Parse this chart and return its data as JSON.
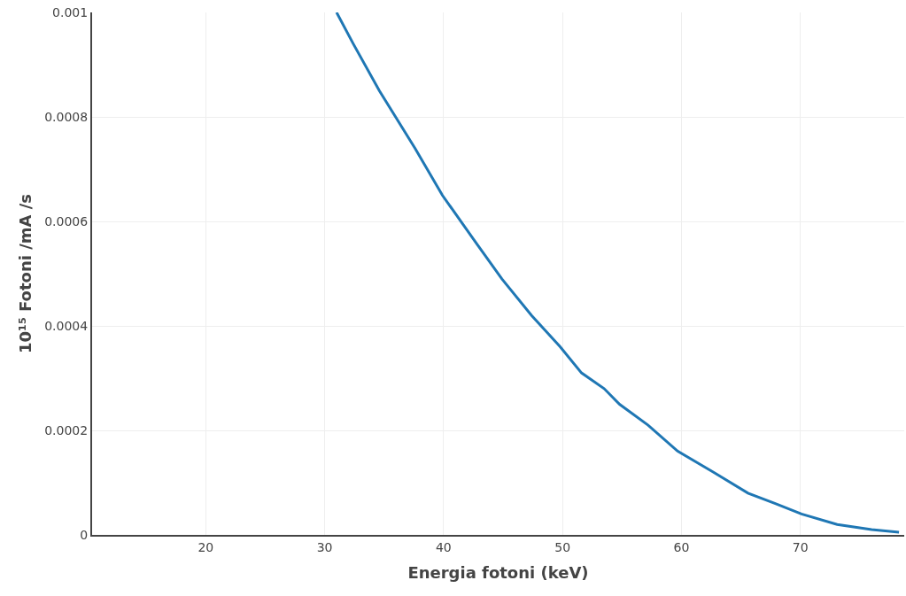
{
  "chart_data": {
    "type": "line",
    "xlabel": "Energia fotoni (keV)",
    "ylabel": "10¹⁵ Fotoni /mA /s",
    "x": [
      31.0,
      32.4,
      34.6,
      37.6,
      39.9,
      42.7,
      44.9,
      47.4,
      49.8,
      51.6,
      53.5,
      54.8,
      57.2,
      59.7,
      62.7,
      65.6,
      67.9,
      70.1,
      73.1,
      76.0,
      78.3
    ],
    "series": [
      {
        "color": "#1f77b4",
        "values": [
          0.001,
          0.00094,
          0.00085,
          0.00074,
          0.00065,
          0.00056,
          0.00049,
          0.00042,
          0.00036,
          0.00031,
          0.00028,
          0.00025,
          0.00021,
          0.00016,
          0.00012,
          8e-05,
          6e-05,
          4e-05,
          2e-05,
          1e-05,
          5e-06
        ]
      }
    ],
    "xlim": [
      10.44,
      78.74
    ],
    "xticks": [
      20,
      30,
      40,
      50,
      60,
      70
    ],
    "ylim": [
      0,
      0.001
    ],
    "yticks": [
      0,
      0.0002,
      0.0004,
      0.0006,
      0.0008,
      0.001
    ],
    "grid": true,
    "marker": "none",
    "line_style": "solid"
  }
}
